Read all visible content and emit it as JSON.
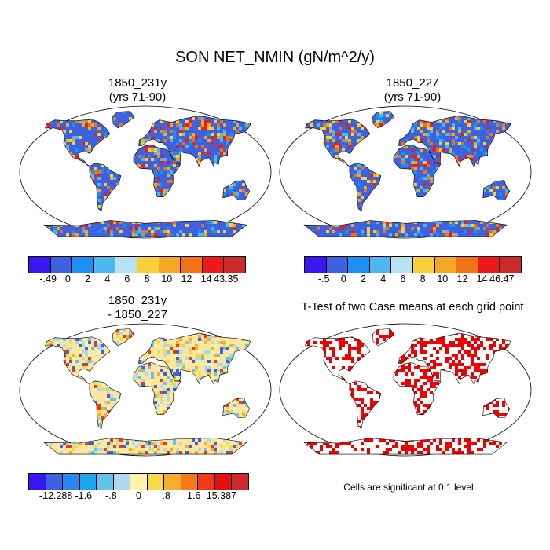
{
  "title": "SON NET_NMIN (gN/m^2/y)",
  "panels": [
    {
      "title_line1": "1850_231y",
      "title_line2": "(yrs 71-90)",
      "colorbar": {
        "labels": [
          "-.49",
          "0",
          "2",
          "4",
          "6",
          "8",
          "10",
          "12",
          "14",
          "43.35"
        ],
        "colors": [
          "#3a17f0",
          "#3d62e0",
          "#1c8ff2",
          "#4fb7ef",
          "#b8e1f2",
          "#f8d13a",
          "#f5a623",
          "#f27218",
          "#ee1a1a",
          "#cc2a2a"
        ]
      }
    },
    {
      "title_line1": "1850_227",
      "title_line2": "(yrs 71-90)",
      "colorbar": {
        "labels": [
          "-.5",
          "0",
          "2",
          "4",
          "6",
          "8",
          "10",
          "12",
          "14",
          "46.47"
        ],
        "colors": [
          "#3a17f0",
          "#3d62e0",
          "#1c8ff2",
          "#4fb7ef",
          "#b8e1f2",
          "#f8d13a",
          "#f5a623",
          "#f27218",
          "#ee1a1a",
          "#cc2a2a"
        ]
      }
    },
    {
      "title_line1": "1850_231y",
      "title_line2": "- 1850_227",
      "colorbar": {
        "labels": [
          "-12.288",
          "-1.6",
          "-.8",
          "0",
          ".8",
          "1.6",
          "15.387"
        ],
        "colors": [
          "#3a17f0",
          "#3d62e0",
          "#2f86ea",
          "#1ea6ee",
          "#63c3ee",
          "#add9ec",
          "#fff5a8",
          "#f9d94a",
          "#f5ad2a",
          "#f27a1a",
          "#ee3a18",
          "#e40f0f",
          "#cc2a2a"
        ]
      }
    },
    {
      "title_line1": "T-Test of two Case means at each grid point",
      "note": "Cells are significant at 0.1 level"
    }
  ],
  "colors": {
    "land_base_abs": "#3d62e0",
    "land_base_diff": "#fde7a0",
    "signif": "#ee0000",
    "ocean": "#ffffff"
  }
}
